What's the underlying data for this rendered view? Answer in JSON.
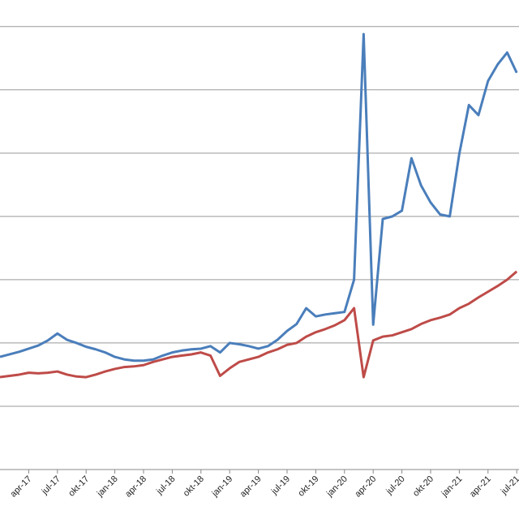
{
  "chart_data": {
    "type": "line",
    "categories": [
      null,
      null,
      null,
      "apr-17",
      null,
      null,
      "jul-17",
      null,
      null,
      "okt-17",
      null,
      null,
      "jan-18",
      null,
      null,
      "apr-18",
      null,
      null,
      "jul-18",
      null,
      null,
      "okt-18",
      null,
      null,
      "jan-19",
      null,
      null,
      "apr-19",
      null,
      null,
      "jul-19",
      null,
      null,
      "okt-19",
      null,
      null,
      "jan-20",
      null,
      null,
      "apr-20",
      null,
      null,
      "jul-20",
      null,
      null,
      "okt-20",
      null,
      null,
      "jan-21",
      null,
      null,
      "apr-21",
      null,
      null,
      "jul-21"
    ],
    "series": [
      {
        "color": "#4a7ebb",
        "values": [
          1.78,
          1.82,
          1.86,
          1.91,
          1.96,
          2.04,
          2.15,
          2.05,
          2.0,
          1.94,
          1.9,
          1.85,
          1.78,
          1.74,
          1.72,
          1.72,
          1.74,
          1.8,
          1.85,
          1.88,
          1.9,
          1.91,
          1.95,
          1.85,
          2.0,
          1.98,
          1.95,
          1.91,
          1.95,
          2.05,
          2.19,
          2.3,
          2.55,
          2.42,
          2.45,
          2.47,
          2.49,
          3.0,
          6.88,
          2.29,
          3.96,
          4.0,
          4.09,
          4.92,
          4.49,
          4.22,
          4.03,
          4.0,
          4.99,
          5.76,
          5.6,
          6.14,
          6.4,
          6.59,
          6.27
        ]
      },
      {
        "color": "#be4b48",
        "values": [
          1.46,
          1.48,
          1.5,
          1.53,
          1.52,
          1.53,
          1.55,
          1.5,
          1.47,
          1.46,
          1.5,
          1.55,
          1.59,
          1.62,
          1.63,
          1.65,
          1.7,
          1.74,
          1.78,
          1.8,
          1.82,
          1.85,
          1.8,
          1.48,
          1.6,
          1.7,
          1.74,
          1.78,
          1.85,
          1.9,
          1.97,
          2.0,
          2.1,
          2.17,
          2.22,
          2.28,
          2.36,
          2.55,
          1.46,
          2.04,
          2.1,
          2.12,
          2.17,
          2.22,
          2.3,
          2.36,
          2.4,
          2.45,
          2.55,
          2.62,
          2.72,
          2.81,
          2.9,
          3.0,
          3.13
        ]
      }
    ],
    "ylim": [
      0,
      7.42
    ],
    "yticks": [
      0,
      1,
      2,
      3,
      4,
      5,
      6,
      7
    ],
    "grid": true
  }
}
